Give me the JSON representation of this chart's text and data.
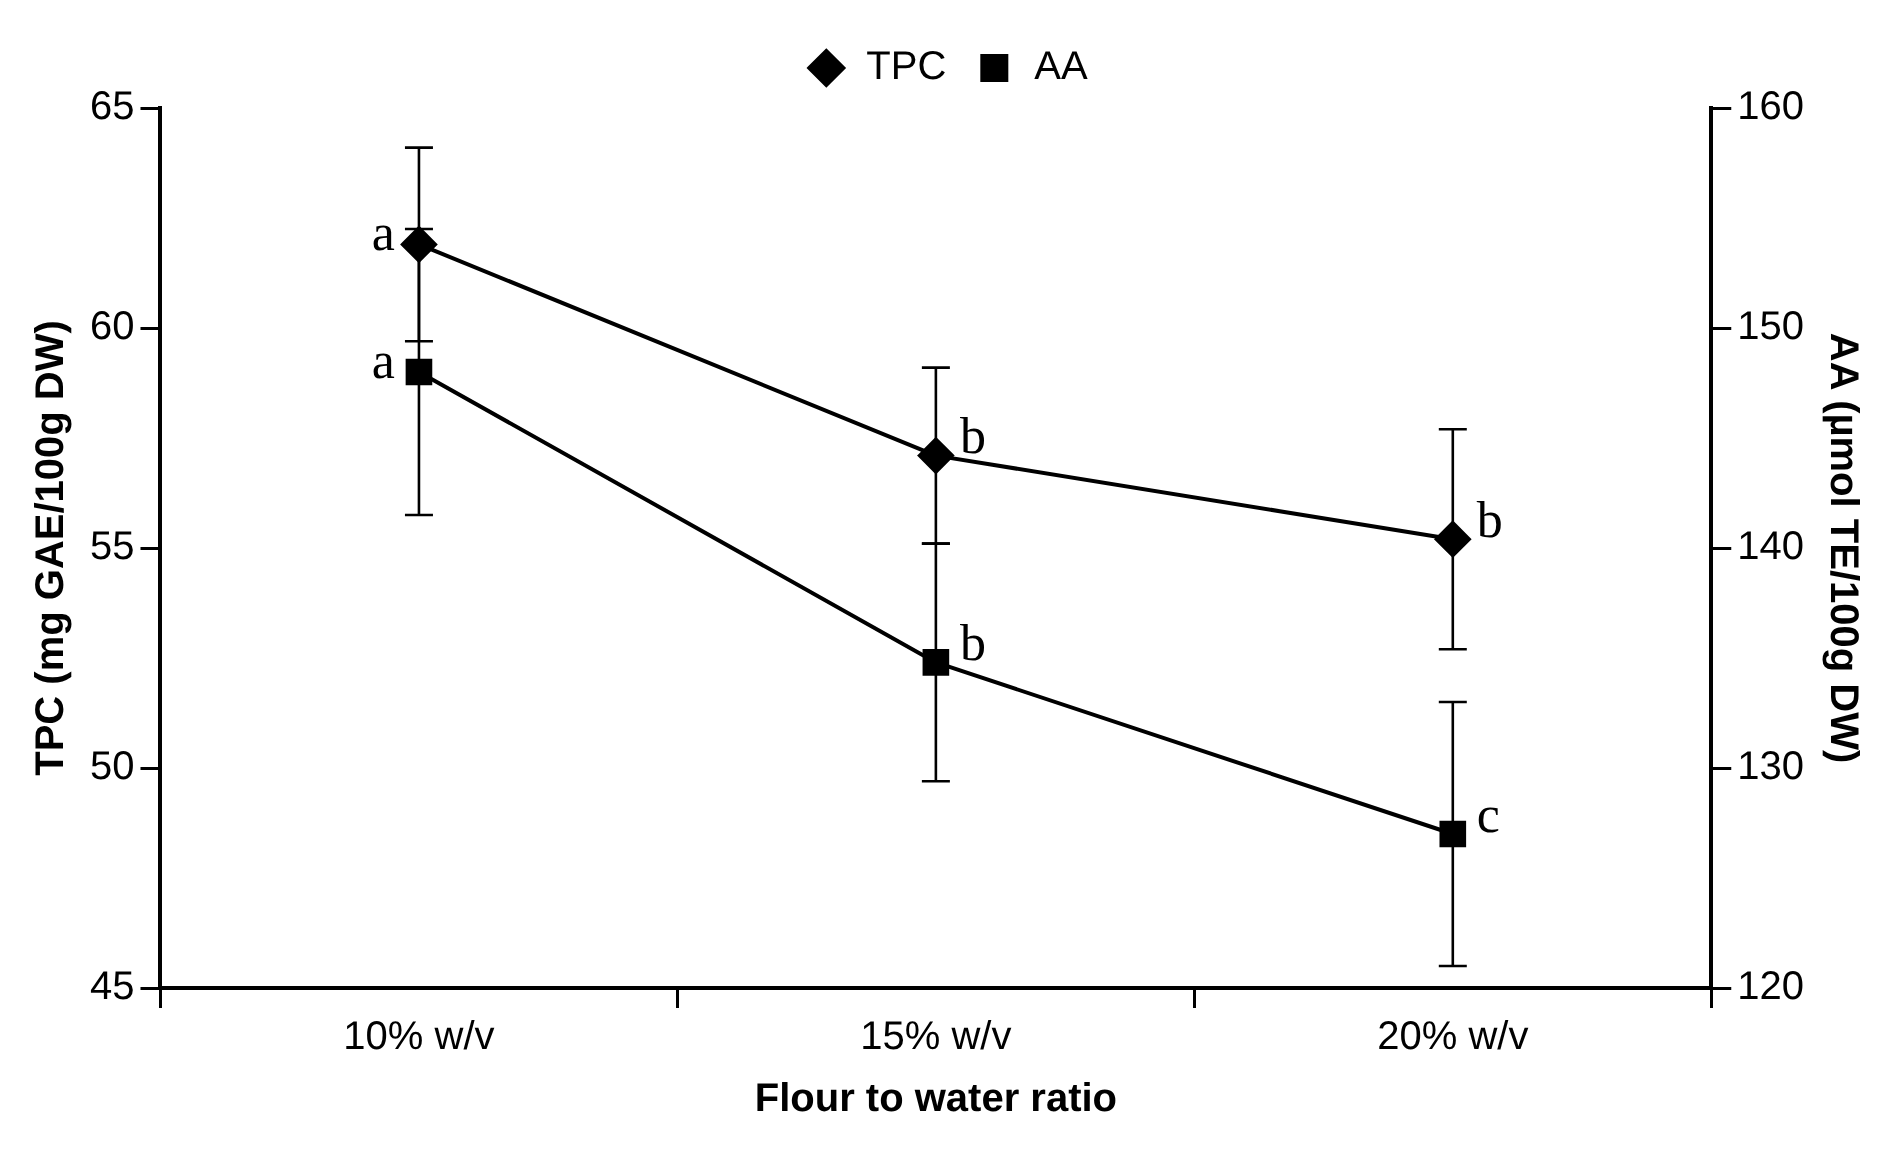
{
  "chart_data": {
    "type": "line",
    "xlabel": "Flour to water ratio",
    "ylabel": "TPC (mg GAE/100g DW)",
    "y2label": "AA (µmol TE/100g DW)",
    "categories": [
      "10% w/v",
      "15% w/v",
      "20% w/v"
    ],
    "series": [
      {
        "name": "TPC",
        "color": "#000000",
        "marker": "diamond",
        "values": [
          61.9,
          57.1,
          55.2
        ],
        "errors": [
          2.2,
          2.0,
          2.5
        ]
      },
      {
        "name": "AA",
        "color": "#000000",
        "marker": "square",
        "axis": "y2",
        "values": [
          148.0,
          134.8,
          127.0
        ],
        "errors": [
          6.5,
          5.4,
          6.0
        ]
      }
    ],
    "ylim": [
      45,
      65
    ],
    "yticks": [
      45,
      50,
      55,
      60,
      65
    ],
    "y2lim": [
      120,
      160
    ],
    "y2ticks": [
      120,
      130,
      140,
      150,
      160
    ],
    "annotations": [
      {
        "text": "a",
        "x": "10% w/v",
        "y": 61.9
      },
      {
        "text": "b",
        "x": "15% w/v",
        "y": 57.1
      },
      {
        "text": "b",
        "x": "20% w/v",
        "y": 55.2
      },
      {
        "text": "a",
        "x": "10% w/v",
        "y": 59.0
      },
      {
        "text": "b",
        "x": "15% w/v",
        "y": 52.4
      },
      {
        "text": "c",
        "x": "20% w/v",
        "y": 48.5
      }
    ],
    "legend": "top",
    "grid": false,
    "line_style": "solid"
  }
}
